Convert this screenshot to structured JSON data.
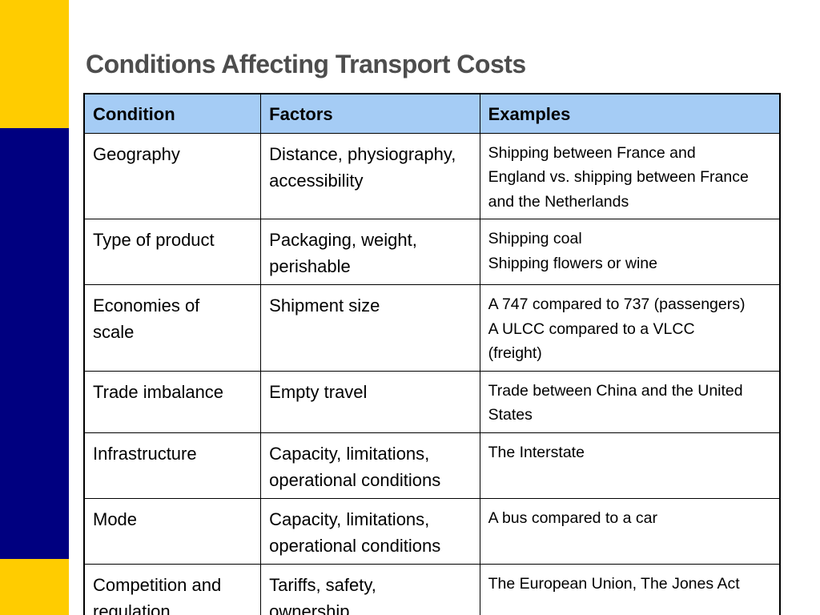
{
  "slide": {
    "title": "Conditions Affecting Transport Costs"
  },
  "table": {
    "headers": [
      "Condition",
      "Factors",
      "Examples"
    ],
    "rows": [
      {
        "condition": [
          "Geography"
        ],
        "factors": [
          "Distance, physiography,",
          "accessibility"
        ],
        "examples": [
          "Shipping between France and",
          "England vs. shipping between France",
          "and the Netherlands"
        ]
      },
      {
        "condition": [
          "Type of product"
        ],
        "factors": [
          "Packaging, weight,",
          "perishable"
        ],
        "examples": [
          "Shipping coal",
          "Shipping flowers or wine"
        ]
      },
      {
        "condition": [
          "Economies of",
          "scale"
        ],
        "factors": [
          "Shipment size"
        ],
        "examples": [
          "A 747 compared to 737 (passengers)",
          "A ULCC compared to a VLCC",
          "(freight)"
        ]
      },
      {
        "condition": [
          "Trade imbalance"
        ],
        "factors": [
          "Empty travel"
        ],
        "examples": [
          "Trade between China and the United",
          "States"
        ]
      },
      {
        "condition": [
          "Infrastructure"
        ],
        "factors": [
          "Capacity, limitations,",
          "operational conditions"
        ],
        "examples": [
          "The Interstate"
        ]
      },
      {
        "condition": [
          "Mode"
        ],
        "factors": [
          "Capacity, limitations,",
          "operational conditions"
        ],
        "examples": [
          "A bus compared to a car"
        ]
      },
      {
        "condition": [
          "Competition and",
          "regulation"
        ],
        "factors": [
          "Tariffs, safety,",
          "ownership"
        ],
        "examples": [
          "The European Union, The Jones Act"
        ]
      }
    ]
  },
  "colors": {
    "accent_yellow": "#FFCC00",
    "accent_navy": "#000080",
    "header_fill": "#A5CCF5",
    "title_text": "#4d4d4d"
  }
}
